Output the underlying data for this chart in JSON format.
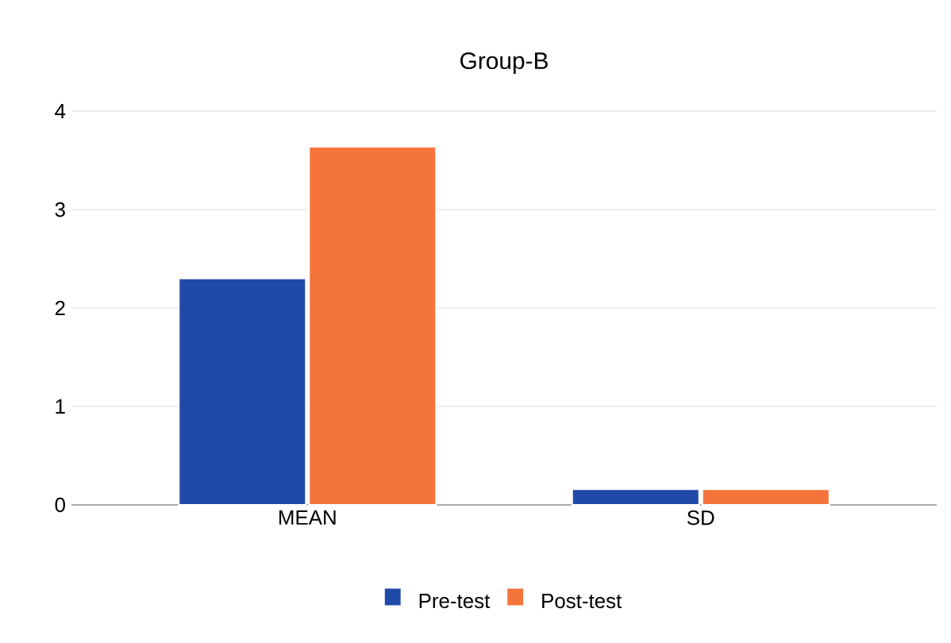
{
  "chart_data": {
    "type": "bar",
    "title": "Group-B",
    "categories": [
      "MEAN",
      "SD"
    ],
    "series": [
      {
        "name": "Pre-test",
        "color": "#1f4aa8",
        "values": [
          2.3,
          0.16
        ]
      },
      {
        "name": "Post-test",
        "color": "#f4743b",
        "values": [
          3.64,
          0.16
        ]
      }
    ],
    "ylim": [
      0,
      4
    ],
    "yticks": [
      0,
      1,
      2,
      3,
      4
    ],
    "grid": "y",
    "legend": "bottom"
  }
}
